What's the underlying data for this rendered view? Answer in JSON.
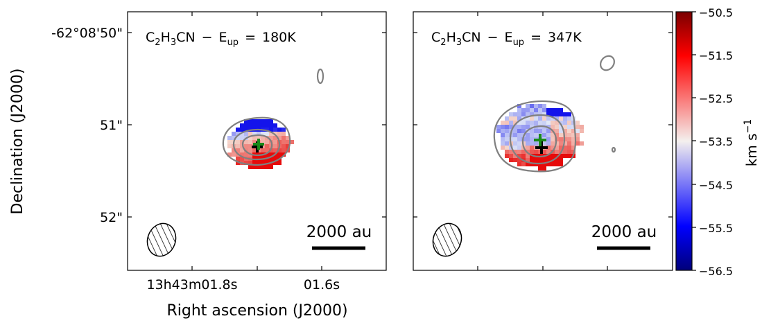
{
  "chart_data": {
    "type": "heatmap",
    "xlabel": "Right ascension (J2000)",
    "ylabel": "Declination (J2000)",
    "colorbar": {
      "label": "km s",
      "label_sup": "−1",
      "min": -56.5,
      "max": -50.5,
      "ticks": [
        "−50.5",
        "−51.5",
        "−52.5",
        "−53.5",
        "−54.5",
        "−55.5",
        "−56.5"
      ],
      "colormap": "seismic (blue-white-red, reversed sign)",
      "color_low": "#00007a",
      "color_mid": "#f4f0ee",
      "color_high": "#7a0000"
    },
    "x_ticks": [
      "13h43m01.8s",
      "01.6s"
    ],
    "y_ticks": [
      "-62°08'50\"",
      "51\"",
      "52\""
    ],
    "panels": [
      {
        "molecule": "C2H3CN",
        "title_parts": {
          "c": "C",
          "s1": "2",
          "h": "H",
          "s2": "3",
          "rest": "CN",
          "dash": "−",
          "e": "E",
          "sub": "up",
          "eq": "=",
          "val": "180K"
        },
        "beam": "ellipse, hatched",
        "scalebar_label": "2000 au",
        "markers": [
          "green cross",
          "black cross"
        ]
      },
      {
        "molecule": "C2H3CN",
        "title_parts": {
          "c": "C",
          "s1": "2",
          "h": "H",
          "s2": "3",
          "rest": "CN",
          "dash": "−",
          "e": "E",
          "sub": "up",
          "eq": "=",
          "val": "347K"
        },
        "beam": "ellipse, hatched",
        "scalebar_label": "2000 au",
        "markers": [
          "green cross",
          "black cross"
        ]
      }
    ],
    "colors": {
      "contour": "#808080",
      "green_marker": "#1a8a1a",
      "black_marker": "#000000"
    }
  }
}
